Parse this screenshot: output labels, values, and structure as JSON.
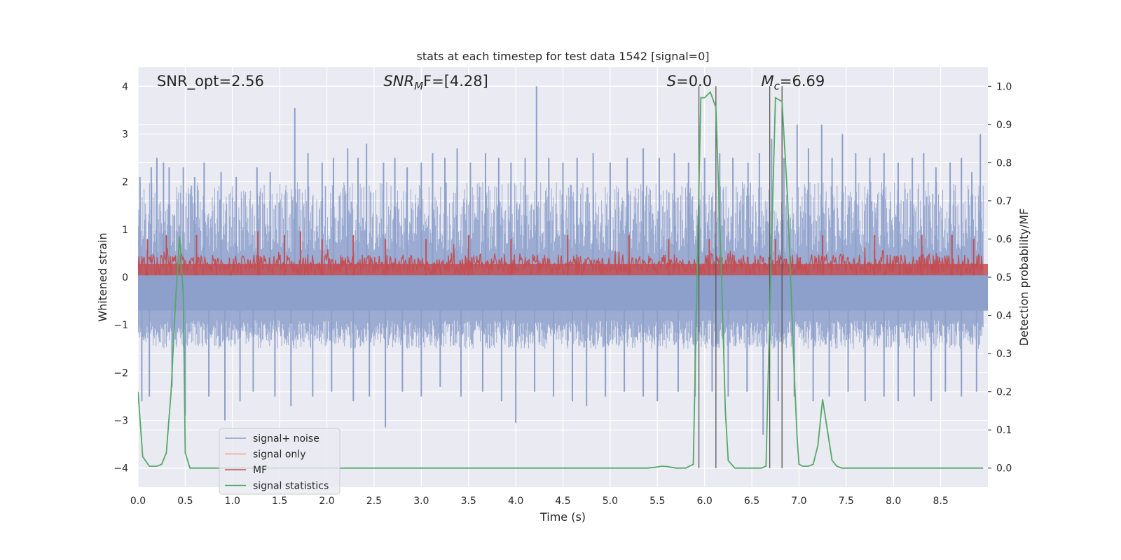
{
  "chart_data": {
    "type": "line",
    "title": "stats at each timestep for test data 1542 [signal=0]",
    "xlabel": "Time (s)",
    "ylabel": "Whitened strain",
    "y2label": "Detection probability/MF",
    "xlim": [
      0.0,
      9.0
    ],
    "ylim": [
      -4.4,
      4.4
    ],
    "y2lim": [
      -0.05,
      1.05
    ],
    "xticks": [
      0.0,
      0.5,
      1.0,
      1.5,
      2.0,
      2.5,
      3.0,
      3.5,
      4.0,
      4.5,
      5.0,
      5.5,
      6.0,
      6.5,
      7.0,
      7.5,
      8.0,
      8.5
    ],
    "xtick_labels": [
      "0.0",
      "0.5",
      "1.0",
      "1.5",
      "2.0",
      "2.5",
      "3.0",
      "3.5",
      "4.0",
      "4.5",
      "5.0",
      "5.5",
      "6.0",
      "6.5",
      "7.0",
      "7.5",
      "8.0",
      "8.5"
    ],
    "yticks": [
      4,
      3,
      2,
      1,
      0,
      -1,
      -2,
      -3,
      -4
    ],
    "ytick_labels": [
      "4",
      "3",
      "2",
      "1",
      "0",
      "−1",
      "−2",
      "−3",
      "−4"
    ],
    "y2ticks": [
      1.0,
      0.9,
      0.8,
      0.7,
      0.6,
      0.5,
      0.4,
      0.3,
      0.2,
      0.1,
      0.0
    ],
    "y2tick_labels": [
      "1.0",
      "0.9",
      "0.8",
      "0.7",
      "0.6",
      "0.5",
      "0.4",
      "0.3",
      "0.2",
      "0.1",
      "0.0"
    ],
    "annotations": [
      {
        "id": "snr-opt",
        "text": "SNR_opt=2.56",
        "x": 0.2
      },
      {
        "id": "snr-mf",
        "text_parts": [
          "SNR",
          "M",
          "F=[4.28]"
        ],
        "x": 2.6
      },
      {
        "id": "s-stat",
        "text_parts": [
          "S",
          "=0.0"
        ],
        "x": 5.6
      },
      {
        "id": "mchirp",
        "text_parts": [
          "M",
          "c",
          "=6.69"
        ],
        "x": 6.6
      }
    ],
    "vlines": [
      5.94,
      6.12,
      6.69,
      6.82
    ],
    "noise": {
      "name": "signal+ noise",
      "color": "#8da0cb",
      "band_upper": [
        0.0,
        2.0
      ],
      "band_lower": [
        -0.7,
        -1.5
      ],
      "peaks": [
        {
          "x": 0.02,
          "y": 2.1
        },
        {
          "x": 0.14,
          "y": 2.3
        },
        {
          "x": 0.2,
          "y": 2.5
        },
        {
          "x": 0.27,
          "y": 2.4
        },
        {
          "x": 0.33,
          "y": 2.3
        },
        {
          "x": 0.48,
          "y": 2.3
        },
        {
          "x": 0.6,
          "y": 2.1
        },
        {
          "x": 0.7,
          "y": 2.4
        },
        {
          "x": 0.88,
          "y": 2.2
        },
        {
          "x": 1.04,
          "y": 2.1
        },
        {
          "x": 1.26,
          "y": 2.3
        },
        {
          "x": 1.4,
          "y": 2.2
        },
        {
          "x": 1.66,
          "y": 3.55
        },
        {
          "x": 1.8,
          "y": 2.6
        },
        {
          "x": 1.95,
          "y": 2.4
        },
        {
          "x": 2.07,
          "y": 2.5
        },
        {
          "x": 2.22,
          "y": 2.7
        },
        {
          "x": 2.33,
          "y": 2.5
        },
        {
          "x": 2.42,
          "y": 2.8
        },
        {
          "x": 2.6,
          "y": 2.4
        },
        {
          "x": 2.72,
          "y": 2.5
        },
        {
          "x": 2.85,
          "y": 2.3
        },
        {
          "x": 3.0,
          "y": 2.4
        },
        {
          "x": 3.12,
          "y": 2.6
        },
        {
          "x": 3.25,
          "y": 2.5
        },
        {
          "x": 3.38,
          "y": 2.7
        },
        {
          "x": 3.52,
          "y": 2.4
        },
        {
          "x": 3.68,
          "y": 2.6
        },
        {
          "x": 3.82,
          "y": 2.5
        },
        {
          "x": 3.95,
          "y": 2.4
        },
        {
          "x": 4.1,
          "y": 2.5
        },
        {
          "x": 4.22,
          "y": 4.0
        },
        {
          "x": 4.35,
          "y": 2.5
        },
        {
          "x": 4.5,
          "y": 2.4
        },
        {
          "x": 4.65,
          "y": 2.5
        },
        {
          "x": 4.82,
          "y": 2.6
        },
        {
          "x": 5.0,
          "y": 2.4
        },
        {
          "x": 5.18,
          "y": 2.5
        },
        {
          "x": 5.35,
          "y": 2.7
        },
        {
          "x": 5.52,
          "y": 2.5
        },
        {
          "x": 5.68,
          "y": 2.6
        },
        {
          "x": 5.83,
          "y": 2.4
        },
        {
          "x": 6.0,
          "y": 2.5
        },
        {
          "x": 6.16,
          "y": 2.6
        },
        {
          "x": 6.3,
          "y": 2.5
        },
        {
          "x": 6.46,
          "y": 2.4
        },
        {
          "x": 6.58,
          "y": 2.6
        },
        {
          "x": 6.71,
          "y": 2.9
        },
        {
          "x": 6.84,
          "y": 2.5
        },
        {
          "x": 6.98,
          "y": 3.2
        },
        {
          "x": 7.1,
          "y": 2.7
        },
        {
          "x": 7.24,
          "y": 3.2
        },
        {
          "x": 7.35,
          "y": 2.5
        },
        {
          "x": 7.46,
          "y": 3.0
        },
        {
          "x": 7.6,
          "y": 2.6
        },
        {
          "x": 7.75,
          "y": 2.5
        },
        {
          "x": 7.9,
          "y": 2.6
        },
        {
          "x": 8.05,
          "y": 2.4
        },
        {
          "x": 8.2,
          "y": 2.5
        },
        {
          "x": 8.32,
          "y": 2.6
        },
        {
          "x": 8.45,
          "y": 2.3
        },
        {
          "x": 8.6,
          "y": 2.4
        },
        {
          "x": 8.72,
          "y": 2.5
        },
        {
          "x": 8.83,
          "y": 2.2
        },
        {
          "x": 8.92,
          "y": 3.0
        }
      ],
      "troughs": [
        {
          "x": 0.04,
          "y": -2.6
        },
        {
          "x": 0.12,
          "y": -2.5
        },
        {
          "x": 0.36,
          "y": -2.3
        },
        {
          "x": 0.5,
          "y": -2.9
        },
        {
          "x": 0.75,
          "y": -2.5
        },
        {
          "x": 0.92,
          "y": -3.0
        },
        {
          "x": 1.08,
          "y": -2.6
        },
        {
          "x": 1.22,
          "y": -2.4
        },
        {
          "x": 1.45,
          "y": -2.5
        },
        {
          "x": 1.62,
          "y": -2.7
        },
        {
          "x": 1.85,
          "y": -2.5
        },
        {
          "x": 2.05,
          "y": -2.4
        },
        {
          "x": 2.28,
          "y": -2.6
        },
        {
          "x": 2.45,
          "y": -2.5
        },
        {
          "x": 2.62,
          "y": -3.15
        },
        {
          "x": 2.8,
          "y": -2.4
        },
        {
          "x": 3.0,
          "y": -2.5
        },
        {
          "x": 3.2,
          "y": -2.3
        },
        {
          "x": 3.42,
          "y": -2.5
        },
        {
          "x": 3.65,
          "y": -2.4
        },
        {
          "x": 3.85,
          "y": -2.6
        },
        {
          "x": 4.0,
          "y": -3.05
        },
        {
          "x": 4.2,
          "y": -2.4
        },
        {
          "x": 4.4,
          "y": -2.5
        },
        {
          "x": 4.6,
          "y": -2.6
        },
        {
          "x": 4.75,
          "y": -2.7
        },
        {
          "x": 4.95,
          "y": -2.5
        },
        {
          "x": 5.15,
          "y": -2.4
        },
        {
          "x": 5.35,
          "y": -2.5
        },
        {
          "x": 5.5,
          "y": -2.6
        },
        {
          "x": 5.72,
          "y": -2.4
        },
        {
          "x": 5.9,
          "y": -2.5
        },
        {
          "x": 6.08,
          "y": -2.4
        },
        {
          "x": 6.25,
          "y": -2.5
        },
        {
          "x": 6.45,
          "y": -2.4
        },
        {
          "x": 6.62,
          "y": -3.3
        },
        {
          "x": 6.78,
          "y": -2.6
        },
        {
          "x": 6.95,
          "y": -2.5
        },
        {
          "x": 7.15,
          "y": -2.6
        },
        {
          "x": 7.32,
          "y": -2.5
        },
        {
          "x": 7.52,
          "y": -2.4
        },
        {
          "x": 7.7,
          "y": -2.6
        },
        {
          "x": 7.9,
          "y": -2.5
        },
        {
          "x": 8.05,
          "y": -2.6
        },
        {
          "x": 8.22,
          "y": -2.5
        },
        {
          "x": 8.4,
          "y": -2.6
        },
        {
          "x": 8.55,
          "y": -2.4
        },
        {
          "x": 8.72,
          "y": -2.5
        },
        {
          "x": 8.88,
          "y": -2.4
        }
      ]
    },
    "signal_only": {
      "name": "signal only",
      "color": "#e8a48a"
    },
    "mf": {
      "name": "MF",
      "color": "#c44e52",
      "band": [
        0.505,
        0.56
      ],
      "peaks": [
        {
          "x": 0.1,
          "y": 0.6
        },
        {
          "x": 0.3,
          "y": 0.61
        },
        {
          "x": 0.62,
          "y": 0.61
        },
        {
          "x": 1.27,
          "y": 0.62
        },
        {
          "x": 1.55,
          "y": 0.61
        },
        {
          "x": 1.72,
          "y": 0.62
        },
        {
          "x": 1.95,
          "y": 0.6
        },
        {
          "x": 2.28,
          "y": 0.61
        },
        {
          "x": 2.62,
          "y": 0.6
        },
        {
          "x": 3.05,
          "y": 0.6
        },
        {
          "x": 3.5,
          "y": 0.61
        },
        {
          "x": 3.95,
          "y": 0.6
        },
        {
          "x": 4.55,
          "y": 0.61
        },
        {
          "x": 5.2,
          "y": 0.61
        },
        {
          "x": 5.62,
          "y": 0.6
        },
        {
          "x": 6.05,
          "y": 0.6
        },
        {
          "x": 6.75,
          "y": 0.6
        },
        {
          "x": 7.25,
          "y": 0.61
        },
        {
          "x": 7.8,
          "y": 0.61
        },
        {
          "x": 8.3,
          "y": 0.61
        },
        {
          "x": 8.62,
          "y": 0.61
        },
        {
          "x": 8.85,
          "y": 0.6
        }
      ]
    },
    "signal_statistics": {
      "name": "signal statistics",
      "color": "#55a868",
      "x": [
        0.0,
        0.05,
        0.12,
        0.2,
        0.25,
        0.3,
        0.35,
        0.4,
        0.44,
        0.48,
        0.5,
        0.55,
        0.6,
        1.0,
        2.0,
        3.0,
        4.0,
        5.0,
        5.4,
        5.5,
        5.55,
        5.6,
        5.7,
        5.8,
        5.88,
        5.92,
        5.96,
        6.0,
        6.06,
        6.12,
        6.18,
        6.22,
        6.25,
        6.32,
        6.4,
        6.5,
        6.6,
        6.65,
        6.7,
        6.75,
        6.82,
        6.88,
        6.94,
        6.98,
        7.0,
        7.04,
        7.1,
        7.15,
        7.2,
        7.25,
        7.3,
        7.35,
        7.4,
        7.45,
        7.5,
        8.0,
        8.95
      ],
      "y": [
        0.2,
        0.03,
        0.005,
        0.005,
        0.01,
        0.04,
        0.2,
        0.45,
        0.607,
        0.45,
        0.04,
        0.0,
        0.0,
        0.0,
        0.0,
        0.0,
        0.0,
        0.0,
        0.0,
        0.003,
        0.005,
        0.004,
        0.0,
        0.0,
        0.01,
        0.5,
        0.97,
        0.97,
        0.985,
        0.945,
        0.5,
        0.15,
        0.02,
        0.0,
        0.0,
        0.0,
        0.0,
        0.005,
        0.5,
        0.97,
        0.96,
        0.7,
        0.3,
        0.08,
        0.01,
        0.005,
        0.005,
        0.01,
        0.06,
        0.18,
        0.1,
        0.02,
        0.005,
        0.0,
        0.0,
        0.0,
        0.0
      ]
    },
    "legend": {
      "placement": "lower-left",
      "entries": [
        {
          "label": "signal+ noise",
          "color": "#8da0cb"
        },
        {
          "label": "signal only",
          "color": "#e8a48a"
        },
        {
          "label": "MF",
          "color": "#c44e52"
        },
        {
          "label": "signal statistics",
          "color": "#55a868"
        }
      ]
    }
  }
}
